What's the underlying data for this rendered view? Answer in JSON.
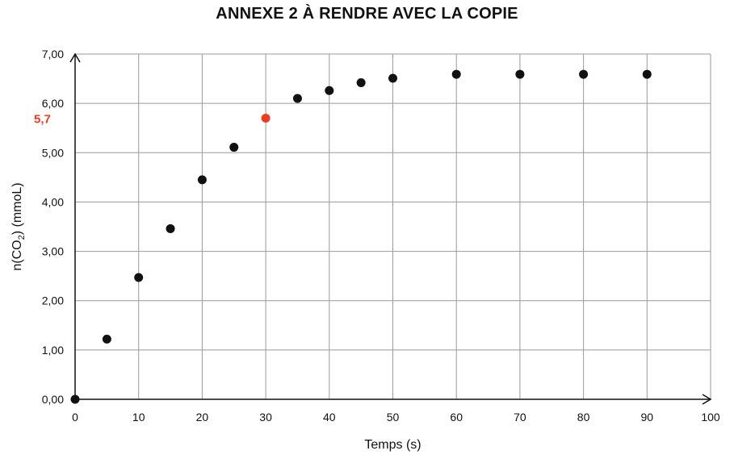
{
  "chart_data": {
    "type": "scatter",
    "title": "ANNEXE 2 À RENDRE AVEC LA COPIE",
    "xlabel": "Temps (s)",
    "ylabel_main": "n(CO",
    "ylabel_sub": "2",
    "ylabel_rest": ") (mmoL)",
    "xlim": [
      0,
      100
    ],
    "ylim": [
      0,
      7
    ],
    "x_ticks": [
      0,
      10,
      20,
      30,
      40,
      50,
      60,
      70,
      80,
      90,
      100
    ],
    "y_ticks": [
      0,
      1,
      2,
      3,
      4,
      5,
      6,
      7
    ],
    "y_tick_labels": [
      "0,00",
      "1,00",
      "2,00",
      "3,00",
      "4,00",
      "5,00",
      "6,00",
      "7,00"
    ],
    "grid": true,
    "x": [
      0,
      5,
      10,
      15,
      20,
      25,
      30,
      35,
      40,
      45,
      50,
      60,
      70,
      80,
      90
    ],
    "y": [
      0,
      1.22,
      2.47,
      3.46,
      4.45,
      5.11,
      5.7,
      6.1,
      6.26,
      6.42,
      6.51,
      6.59,
      6.59,
      6.59,
      6.59
    ],
    "point_color": "#111111",
    "highlight": {
      "x": 30,
      "y": 5.7,
      "label": "5,7",
      "color": "#f03c1e"
    }
  }
}
